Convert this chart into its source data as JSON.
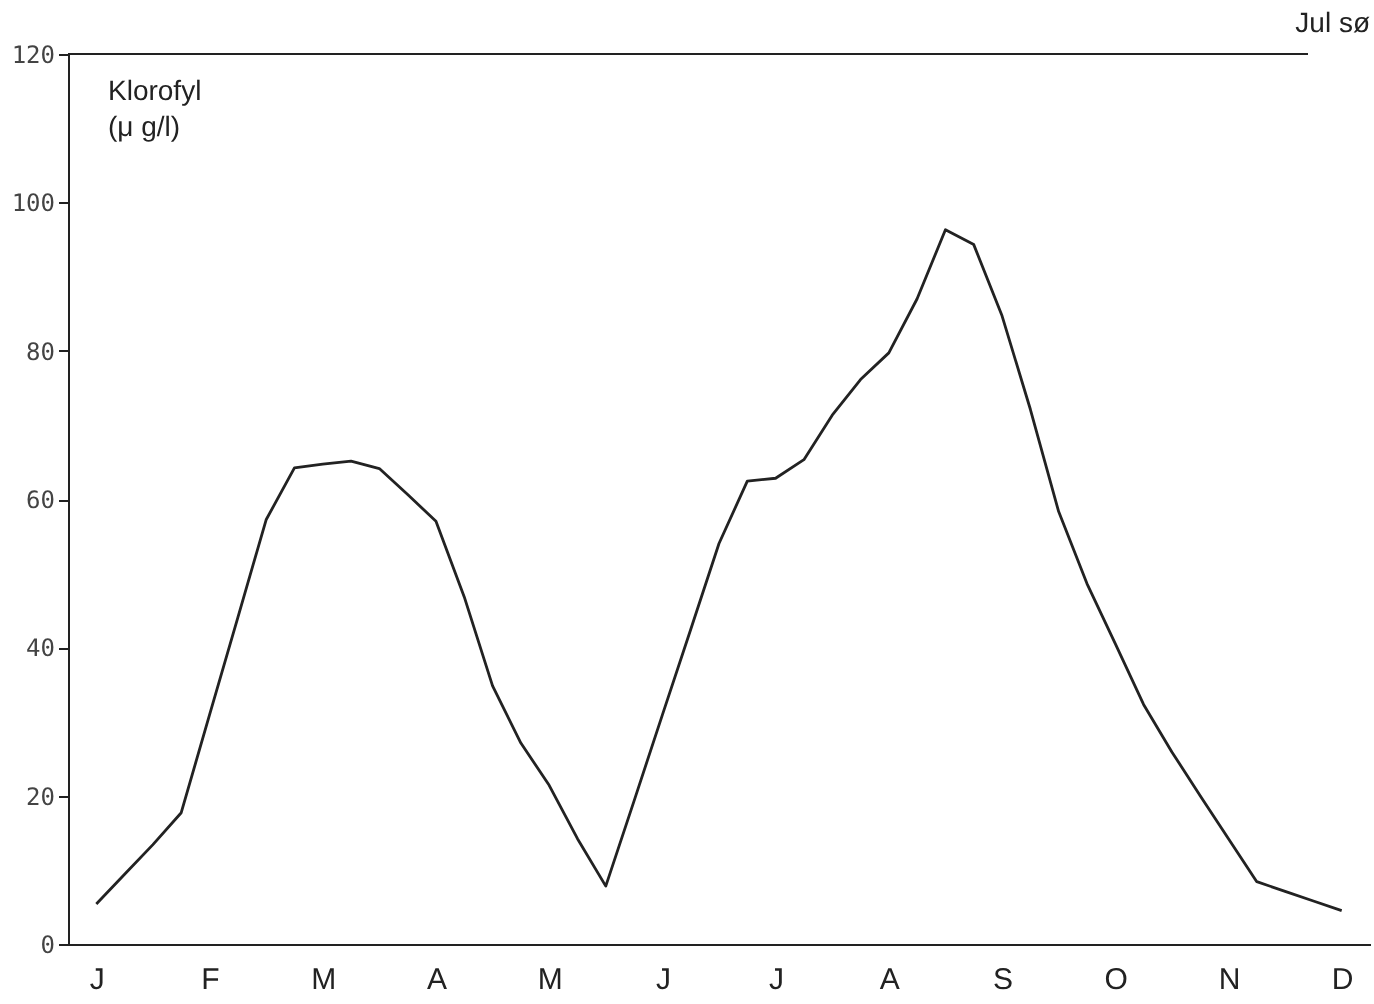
{
  "chart_data": {
    "type": "line",
    "title": "Jul sø",
    "ylabel": "Klorofyl\n(μ g/l)",
    "categories": [
      "J",
      null,
      null,
      null,
      "F",
      null,
      null,
      null,
      "M",
      null,
      null,
      null,
      "A",
      null,
      null,
      null,
      "M",
      null,
      null,
      null,
      "J",
      null,
      null,
      null,
      "J",
      null,
      null,
      null,
      "A",
      null,
      null,
      null,
      "S",
      null,
      null,
      null,
      "O",
      null,
      null,
      null,
      "N",
      null,
      null,
      null,
      "D"
    ],
    "series": [
      {
        "color": "#222222",
        "values": [
          5.4,
          9.4,
          13.4,
          17.7,
          30.9,
          44.0,
          57.2,
          64.2,
          64.7,
          65.1,
          64.1,
          60.6,
          57.0,
          46.8,
          34.8,
          27.1,
          21.4,
          14.2,
          7.8,
          19.3,
          30.9,
          42.4,
          54.0,
          62.4,
          62.8,
          65.3,
          71.3,
          76.1,
          79.7,
          87.0,
          96.3,
          94.3,
          84.7,
          72.1,
          58.3,
          48.6,
          40.5,
          32.3,
          25.9,
          20.0,
          14.2,
          8.4,
          7.1,
          5.8,
          4.5
        ]
      }
    ],
    "ylim": [
      0,
      120
    ],
    "yticks": [
      0,
      20,
      40,
      60,
      80,
      100,
      120
    ],
    "grid": false,
    "marker": "none",
    "line_style": "solid"
  }
}
